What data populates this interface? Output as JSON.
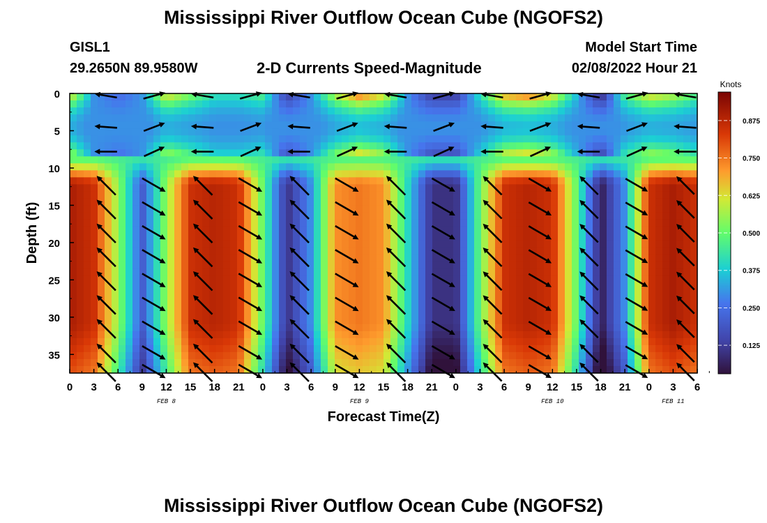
{
  "header": {
    "title": "Mississippi River Outflow Ocean Cube (NGOFS2)",
    "station": "GISL1",
    "location": "29.2650N  89.9580W",
    "subtitle": "2-D Currents Speed-Magnitude",
    "model_label": "Model Start Time",
    "model_time": "02/08/2022 Hour 21"
  },
  "footer": {
    "title": "Mississippi River Outflow Ocean Cube (NGOFS2)"
  },
  "chart_data": {
    "type": "heatmap",
    "title": "2-D Currents Speed-Magnitude",
    "xlabel": "Forecast Time(Z)",
    "ylabel": "Depth (ft)",
    "x_ticks": [
      "0",
      "3",
      "6",
      "9",
      "12",
      "15",
      "18",
      "21",
      "0",
      "3",
      "6",
      "9",
      "12",
      "15",
      "18",
      "21",
      "0",
      "3",
      "6",
      "9",
      "12",
      "15",
      "18",
      "21",
      "0",
      "3",
      "6"
    ],
    "x_range_hours": [
      0,
      78
    ],
    "date_labels": [
      {
        "label": "FEB 8",
        "hour": 12
      },
      {
        "label": "FEB 9",
        "hour": 36
      },
      {
        "label": "FEB 10",
        "hour": 60
      },
      {
        "label": "FEB 11",
        "hour": 75
      }
    ],
    "y_ticks": [
      0,
      5,
      10,
      15,
      20,
      25,
      30,
      35
    ],
    "y_range": [
      0,
      37.5
    ],
    "y_inverted": true,
    "colorbar": {
      "label": "Knots",
      "range": [
        0.03,
        0.97
      ],
      "ticks": [
        "0.875",
        "0.750",
        "0.625",
        "0.500",
        "0.375",
        "0.250",
        "0.125"
      ],
      "tick_values": [
        0.875,
        0.75,
        0.625,
        0.5,
        0.375,
        0.25,
        0.125
      ]
    },
    "deep_layer_speed_knots": [
      0.9,
      0.85,
      0.55,
      0.2,
      0.55,
      0.85,
      0.88,
      0.85,
      0.5,
      0.1,
      0.3,
      0.72,
      0.75,
      0.72,
      0.4,
      0.1,
      0.1,
      0.5,
      0.85,
      0.88,
      0.85,
      0.5,
      0.05,
      0.3,
      0.85,
      0.9,
      0.85
    ],
    "surface_layer_speed_knots": [
      0.6,
      0.3,
      0.25,
      0.3,
      0.6,
      0.5,
      0.4,
      0.4,
      0.45,
      0.15,
      0.3,
      0.55,
      0.7,
      0.6,
      0.3,
      0.15,
      0.15,
      0.4,
      0.65,
      0.7,
      0.6,
      0.35,
      0.1,
      0.45,
      0.6,
      0.55,
      0.45
    ],
    "units": {
      "speed": "knots",
      "depth": "ft"
    }
  }
}
